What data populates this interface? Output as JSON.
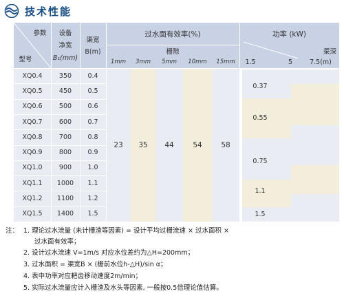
{
  "title": "技术性能",
  "header": {
    "param": "参数",
    "model": "型号",
    "width_line1": "设备",
    "width_line2": "净宽",
    "width_line3": "B₁(mm)",
    "channel_line1": "渠宽",
    "channel_line2": "B(m)",
    "efficiency": "过水面有效率(%)",
    "gap": "栅隙",
    "gaps": [
      "1mm",
      "3mm",
      "5mm",
      "10mm",
      "15mm"
    ],
    "power": "功率 (kW)",
    "depth": "渠深",
    "depths": [
      "1.5",
      "5",
      "7.5(m)"
    ]
  },
  "rows": [
    {
      "model": "XQ0.4",
      "width": "350",
      "channel": "0.4"
    },
    {
      "model": "XQ0.5",
      "width": "450",
      "channel": "0.5"
    },
    {
      "model": "XQ0.6",
      "width": "500",
      "channel": "0.6"
    },
    {
      "model": "XQ0.7",
      "width": "600",
      "channel": "0.7"
    },
    {
      "model": "XQ0.8",
      "width": "700",
      "channel": "0.8"
    },
    {
      "model": "XQ0.9",
      "width": "800",
      "channel": "0.9"
    },
    {
      "model": "XQ1.0",
      "width": "900",
      "channel": "1.0"
    },
    {
      "model": "XQ1.1",
      "width": "1000",
      "channel": "1.1"
    },
    {
      "model": "XQ1.2",
      "width": "1100",
      "channel": "1.2"
    },
    {
      "model": "XQ1.5",
      "width": "1400",
      "channel": "1.5"
    }
  ],
  "efficiency_values": [
    "23",
    "35",
    "44",
    "54",
    "58"
  ],
  "power_values": [
    "0.37",
    "0.55",
    "0.75",
    "1.1",
    "1.5"
  ],
  "notes": {
    "prefix": "注：",
    "n1a": "1. 理论过水流量 (未计栅渣等因素) = 设计平均过栅流速 × 过水面积 ×",
    "n1b": "过水面有效率；",
    "n2": "2. 设计过水流速 V=1m/s 对应水位差约为△H=200mm；",
    "n3": "3. 过水面积 = 渠宽B × (栅前水位h-△H)/sin α；",
    "n4": "4. 表中功率对应耙齿移动速度2m/min；",
    "n5": "5. 实际过水流量应计入栅渣及水头等因素, 一般按0.5倍理论值估算。"
  },
  "colors": {
    "header": "#c9d1e4",
    "col_a": "#e9ecf3",
    "col_b": "#f3eddc",
    "title": "#1a4f86",
    "logo": "#1a4f86"
  }
}
